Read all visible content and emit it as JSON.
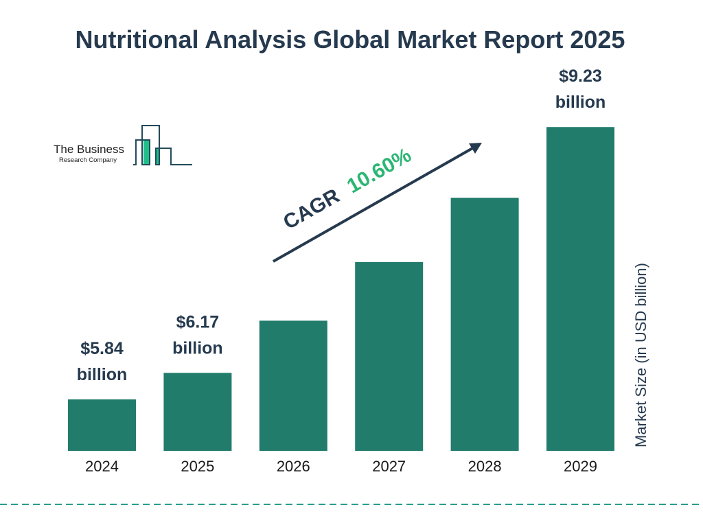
{
  "title": "Nutritional Analysis Global Market Report 2025",
  "logo": {
    "line1": "The Business",
    "line2": "Research Company"
  },
  "colors": {
    "bar": "#217c6b",
    "title": "#263a4f",
    "cagr_value": "#2bb673",
    "logo_accent": "#1fbf8a",
    "dashed_line": "#2a9d8f"
  },
  "chart_data": {
    "type": "bar",
    "title": "Nutritional Analysis Global Market Report 2025",
    "categories": [
      "2024",
      "2025",
      "2026",
      "2027",
      "2028",
      "2029"
    ],
    "values": [
      5.84,
      6.17,
      6.82,
      7.55,
      8.35,
      9.23
    ],
    "data_labels": [
      {
        "index": 0,
        "line1": "$5.84",
        "line2": "billion"
      },
      {
        "index": 1,
        "line1": "$6.17",
        "line2": "billion"
      },
      {
        "index": 5,
        "line1": "$9.23",
        "line2": "billion"
      }
    ],
    "ylabel": "Market Size (in USD billion)",
    "xlabel": "",
    "ylim": [
      5.2,
      9.3
    ],
    "grid": false,
    "annotation": {
      "label": "CAGR",
      "value": "10.60%"
    }
  }
}
